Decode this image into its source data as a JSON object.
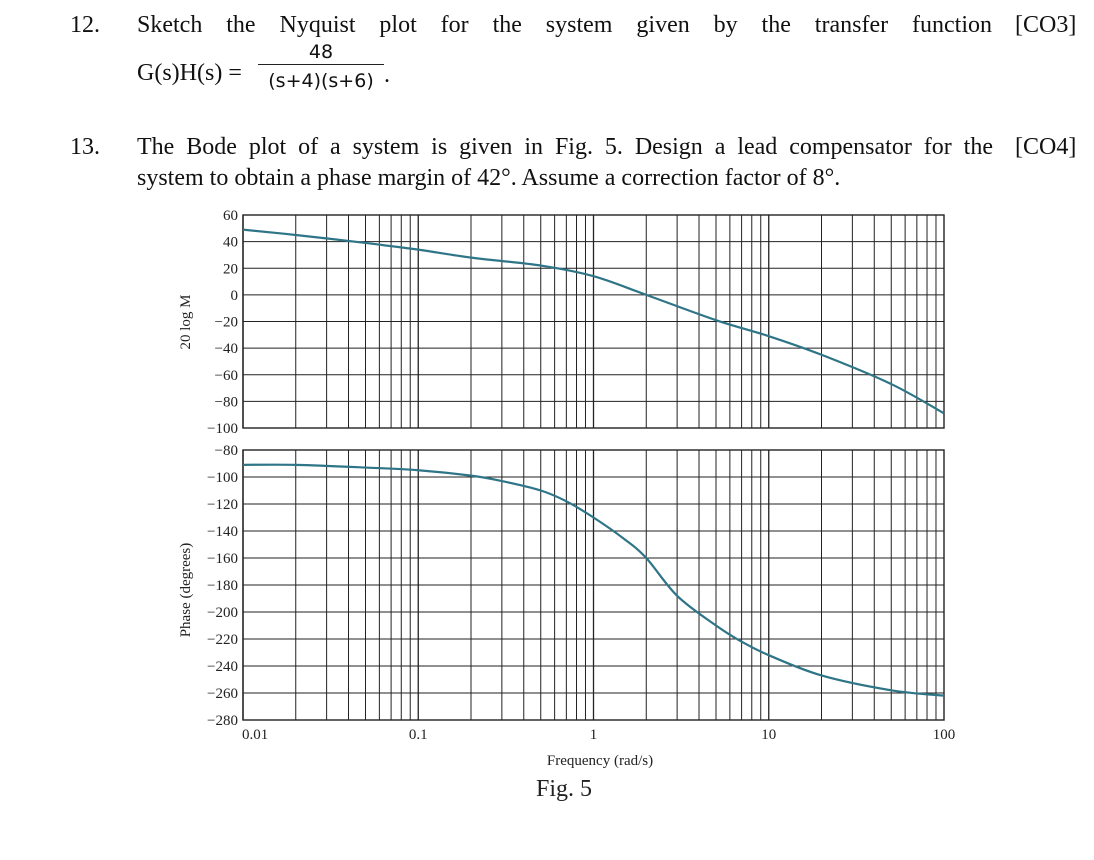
{
  "q12": {
    "number": "12.",
    "text": "Sketch the Nyquist plot for the system given by the transfer function",
    "co": "[CO3]",
    "lhs": "G(s)H(s) =",
    "numerator": "48",
    "denominator": "(s+4)(s+6)",
    "end": "."
  },
  "q13": {
    "number": "13.",
    "line1": "The Bode plot of a system is given in Fig. 5. Design a lead compensator for the",
    "line2": "system to obtain a phase margin of 42°. Assume a correction factor of 8°.",
    "co": "[CO4]"
  },
  "figure": {
    "caption": "Fig. 5",
    "xlabel": "Frequency (rad/s)",
    "mag_ylabel": "20 log M",
    "phase_ylabel": "Phase (degrees)",
    "line_color": "#2e7587"
  },
  "chart_data": [
    {
      "type": "line",
      "x_scale": "log",
      "xlim": [
        0.01,
        100
      ],
      "x_ticks": [
        "0.01",
        "0.1",
        "1",
        "10",
        "100"
      ],
      "ylim": [
        -100,
        60
      ],
      "y_ticks": [
        "60",
        "40",
        "20",
        "0",
        "−20",
        "−40",
        "−60",
        "−80",
        "−100"
      ],
      "ylabel": "20 log M",
      "grid": true,
      "x": [
        0.01,
        0.02,
        0.05,
        0.1,
        0.2,
        0.5,
        1,
        2,
        5,
        10,
        20,
        50,
        100
      ],
      "y": [
        49,
        45,
        39,
        34,
        28,
        22,
        14,
        0,
        -19,
        -31,
        -45,
        -67,
        -89
      ]
    },
    {
      "type": "line",
      "x_scale": "log",
      "xlim": [
        0.01,
        100
      ],
      "x_ticks": [
        "0.01",
        "0.1",
        "1",
        "10",
        "100"
      ],
      "ylim": [
        -280,
        -80
      ],
      "y_ticks": [
        "−80",
        "−100",
        "−120",
        "−140",
        "−160",
        "−180",
        "−200",
        "−220",
        "−240",
        "−260",
        "−280"
      ],
      "ylabel": "Phase (degrees)",
      "xlabel": "Frequency (rad/s)",
      "grid": true,
      "x": [
        0.01,
        0.02,
        0.05,
        0.1,
        0.2,
        0.3,
        0.5,
        0.7,
        1,
        1.5,
        2,
        3,
        5,
        7,
        10,
        20,
        50,
        100
      ],
      "y": [
        -91,
        -91,
        -93,
        -95,
        -99,
        -103,
        -110,
        -118,
        -130,
        -146,
        -160,
        -188,
        -210,
        -222,
        -232,
        -247,
        -258,
        -262
      ]
    }
  ]
}
